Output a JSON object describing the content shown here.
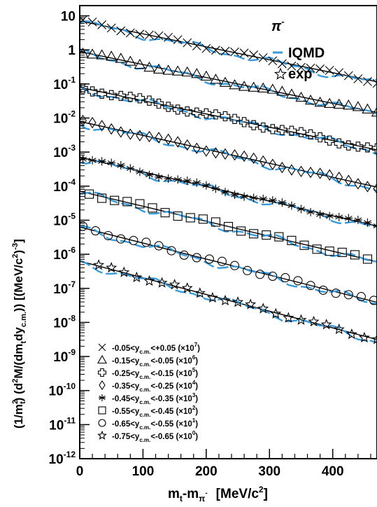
{
  "chart_data": {
    "type": "scatter",
    "particle": "π",
    "particle_sup": "-",
    "xlabel": {
      "main": "m",
      "sub1": "t",
      "mid": "-m",
      "sub2": "π",
      "sup2": "-",
      "unit": "[MeV/c",
      "unit_sup": "2",
      "unit_end": "]"
    },
    "ylabel": {
      "p1": "(1/m",
      "p1_sup": "2",
      "p1_sub": "t",
      "p2": ")  (d",
      "p2_sup": "2",
      "p3": "M/(dm",
      "p3_sub": "t",
      "p4": "dy",
      "p4_sub": "c.m.",
      "p5": "))  [(MeV/c",
      "p5_sup": "2",
      "p6": ")",
      "p6_sup": "-3",
      "p7": "]"
    },
    "xlim": [
      0,
      470
    ],
    "ylim_log10": [
      -12,
      1.3
    ],
    "log_y": true,
    "x_ticks": [
      "0",
      "100",
      "200",
      "300",
      "400"
    ],
    "y_ticks": [
      {
        "base": "10",
        "exp": "-12"
      },
      {
        "base": "10",
        "exp": "-11"
      },
      {
        "base": "10",
        "exp": "-10"
      },
      {
        "base": "10",
        "exp": "-9"
      },
      {
        "base": "10",
        "exp": "-8"
      },
      {
        "base": "10",
        "exp": "-7"
      },
      {
        "base": "10",
        "exp": "-6"
      },
      {
        "base": "10",
        "exp": "-5"
      },
      {
        "base": "10",
        "exp": "-4"
      },
      {
        "base": "10",
        "exp": "-3"
      },
      {
        "base": "10",
        "exp": "-2"
      },
      {
        "base": "10",
        "exp": "-1"
      },
      {
        "base": "1",
        "exp": ""
      },
      {
        "base": "10",
        "exp": ""
      }
    ],
    "model_legend": "IQMD",
    "exp_legend": "exp",
    "model_color": "#3a9ad9",
    "fit_color": "#000000",
    "series": [
      {
        "marker": "x",
        "ylo": "-0.05",
        "yhi": "+0.05",
        "scale": "7",
        "log10_at_0": 0.85,
        "slope": -0.0038
      },
      {
        "marker": "triangle",
        "ylo": "-0.15",
        "yhi": "-0.05",
        "scale": "6",
        "log10_at_0": -0.05,
        "slope": -0.0038
      },
      {
        "marker": "cross",
        "ylo": "-0.25",
        "yhi": "-0.15",
        "scale": "5",
        "log10_at_0": -1.1,
        "slope": -0.0039
      },
      {
        "marker": "diamond",
        "ylo": "-0.35",
        "yhi": "-0.25",
        "scale": "4",
        "log10_at_0": -2.1,
        "slope": -0.0041
      },
      {
        "marker": "star6",
        "ylo": "-0.45",
        "yhi": "-0.35",
        "scale": "3",
        "log10_at_0": -3.15,
        "slope": -0.0043
      },
      {
        "marker": "square",
        "ylo": "-0.55",
        "yhi": "-0.45",
        "scale": "2",
        "log10_at_0": -4.15,
        "slope": -0.0044
      },
      {
        "marker": "circle",
        "ylo": "-0.65",
        "yhi": "-0.55",
        "scale": "1",
        "log10_at_0": -5.2,
        "slope": -0.0047
      },
      {
        "marker": "star5",
        "ylo": "-0.75",
        "yhi": "-0.65",
        "scale": "0",
        "log10_at_0": -6.2,
        "slope": -0.0049
      }
    ],
    "legend_sub": "c.m.",
    "legend_y": "y",
    "legend_times": "×10"
  }
}
